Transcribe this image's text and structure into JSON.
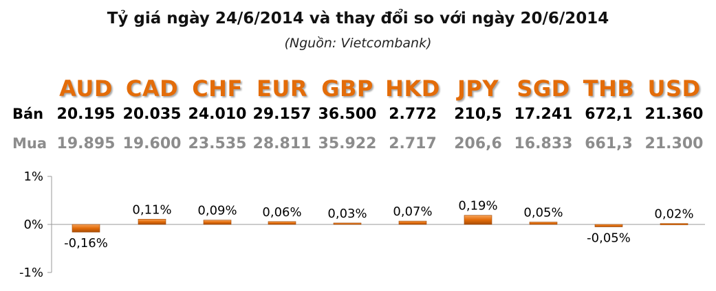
{
  "title": "Tỷ giá ngày 24/6/2014 và thay đổi so với ngày 20/6/2014",
  "subtitle": "(Nguồn: Vietcombank)",
  "rows": {
    "ban_label": "Bán",
    "mua_label": "Mua"
  },
  "currencies": [
    {
      "code": "AUD",
      "ban": "20.195",
      "mua": "19.895"
    },
    {
      "code": "CAD",
      "ban": "20.035",
      "mua": "19.600"
    },
    {
      "code": "CHF",
      "ban": "24.010",
      "mua": "23.535"
    },
    {
      "code": "EUR",
      "ban": "29.157",
      "mua": "28.811"
    },
    {
      "code": "GBP",
      "ban": "36.500",
      "mua": "35.922"
    },
    {
      "code": "HKD",
      "ban": "2.772",
      "mua": "2.717"
    },
    {
      "code": "JPY",
      "ban": "210,5",
      "mua": "206,6"
    },
    {
      "code": "SGD",
      "ban": "17.241",
      "mua": "16.833"
    },
    {
      "code": "THB",
      "ban": "672,1",
      "mua": "661,3"
    },
    {
      "code": "USD",
      "ban": "21.360",
      "mua": "21.300"
    }
  ],
  "colors": {
    "currency_code": "#e36c09",
    "bar": "#e36c09",
    "ban_text": "#000000",
    "mua_text": "#8c8c8c"
  },
  "chart_data": {
    "type": "bar",
    "categories": [
      "AUD",
      "CAD",
      "CHF",
      "EUR",
      "GBP",
      "HKD",
      "JPY",
      "SGD",
      "THB",
      "USD"
    ],
    "values": [
      -0.16,
      0.11,
      0.09,
      0.06,
      0.03,
      0.07,
      0.19,
      0.05,
      -0.05,
      0.02
    ],
    "data_labels": [
      "-0,16%",
      "0,11%",
      "0,09%",
      "0,06%",
      "0,03%",
      "0,07%",
      "0,19%",
      "0,05%",
      "-0,05%",
      "0,02%"
    ],
    "ylim": [
      -1,
      1
    ],
    "yticks": [
      1,
      0,
      -1
    ],
    "ytick_labels": [
      "1%",
      "0%",
      "-1%"
    ],
    "grid": false,
    "legend": "none"
  }
}
